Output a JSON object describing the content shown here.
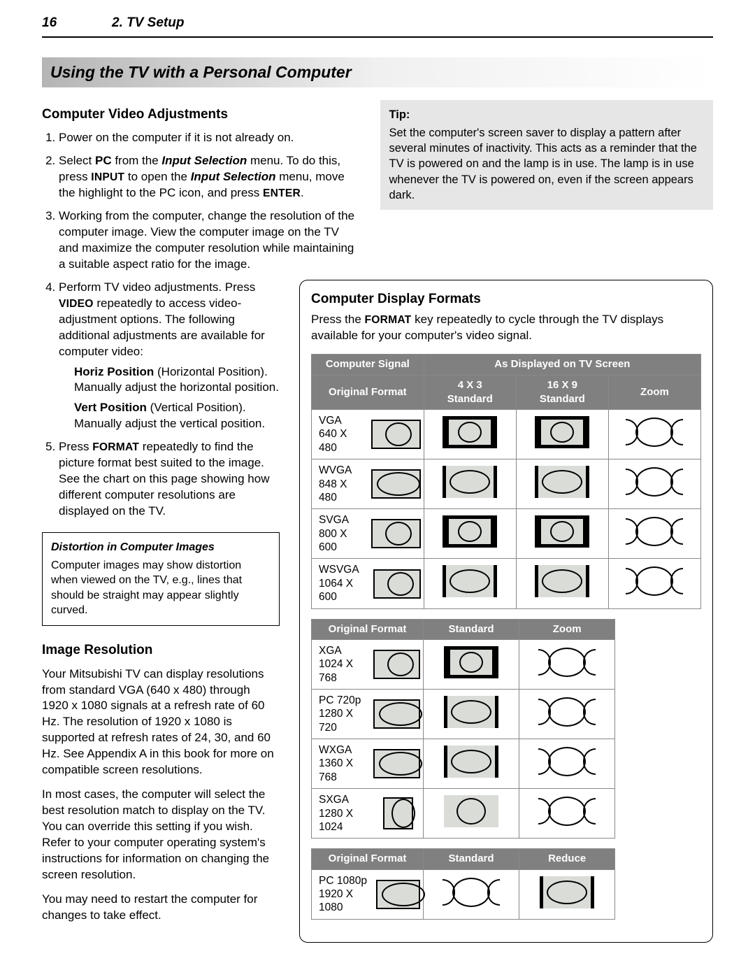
{
  "page_number": "16",
  "chapter": "2.  TV Setup",
  "banner": "Using the TV with a Personal Computer",
  "left": {
    "heading1": "Computer Video Adjustments",
    "steps": [
      "Power on the computer if it is not already on.",
      "Select <b>PC</b> from the <b><i>Input Selection</i></b> menu.  To do this, press <span class='small-caps'>INPUT</span> to open the <b><i>Input Selection</i></b> menu, move the highlight to the PC icon, and press <span class='small-caps'>ENTER</span>.",
      "Working from the computer, change the resolution of the computer image.  View the computer image on the TV and maximize the computer resolution while maintaining a suitable aspect ratio for the image.",
      "Perform TV video adjustments.  Press <span class='small-caps'>VIDEO</span> repeatedly to access video-adjustment options.  The following additional adjustments are available for computer video:",
      "Press <span class='small-caps'>FORMAT</span> repeatedly to find the picture format best suited to the image.  See the chart on this page showing how different computer resolutions are displayed on the TV."
    ],
    "step4_sub": [
      "<b>Horiz Position</b> (Horizontal Position). Manually adjust the horizontal position.",
      "<b>Vert Position</b> (Vertical Position). Manually adjust the vertical position."
    ],
    "distortion_head": "Distortion in Computer Images",
    "distortion_body": "Computer images may show distortion when viewed on the TV, e.g., lines that should be straight may appear slightly curved.",
    "heading2": "Image Resolution",
    "res_p1": "Your Mitsubishi TV can display resolutions from standard VGA (640 x 480) through 1920 x 1080 signals at a refresh rate of 60 Hz.  The resolution of 1920 x 1080 is supported at refresh rates of  24, 30, and 60 Hz.  See Appendix A in this book for more on compatible screen resolutions.",
    "res_p2": "In most cases, the computer will select the best resolution match to display on the TV. You can override this setting if you wish. Refer to your computer operating system's instructions for information on changing the screen resolution.",
    "res_p3": "You may need to restart the computer for changes to take effect."
  },
  "tip": {
    "head": "Tip:",
    "body": "Set the computer's screen saver to display a pattern after several minutes of inactivity.  This acts as a reminder that the TV is powered on and the lamp is in use.  The lamp is in use whenever the TV is powered on, even if the screen appears dark."
  },
  "formats": {
    "heading": "Computer Display Formats",
    "lead": "Press the <span class='small-caps'>FORMAT</span> key repeatedly to cycle through the TV displays available for your computer's video signal.",
    "table1": {
      "header_top": [
        "Computer Signal",
        "As Displayed on TV Screen"
      ],
      "header_sub": [
        "Original Format",
        "4 X 3 Standard",
        "16 X 9 Standard",
        "Zoom"
      ],
      "rows": [
        {
          "name": "VGA",
          "res": "640 X 480",
          "cells": [
            "plain",
            "letterbox",
            "letterbox",
            "zoom"
          ]
        },
        {
          "name": "WVGA",
          "res": "848 X 480",
          "cells": [
            "wide",
            "pillarwide",
            "pillarwide",
            "zoom"
          ]
        },
        {
          "name": "SVGA",
          "res": "800 X 600",
          "cells": [
            "plain",
            "letterbox",
            "letterbox",
            "zoom"
          ]
        },
        {
          "name": "WSVGA",
          "res": "1064 X 600",
          "cells": [
            "plain",
            "pillarwide",
            "pillarwide",
            "zoom"
          ]
        }
      ]
    },
    "table2": {
      "header": [
        "Original Format",
        "Standard",
        "Zoom"
      ],
      "rows": [
        {
          "name": "XGA",
          "res": "1024 X 768",
          "cells": [
            "plain",
            "letterbox",
            "zoom"
          ]
        },
        {
          "name": "PC 720p",
          "res": "1280 X 720",
          "cells": [
            "wide",
            "pillarwide",
            "zoom"
          ]
        },
        {
          "name": "WXGA",
          "res": "1360 X 768",
          "cells": [
            "wide",
            "pillarwide",
            "zoom"
          ]
        },
        {
          "name": "SXGA",
          "res": "1280 X 1024",
          "cells": [
            "tall",
            "fill",
            "zoom"
          ]
        }
      ]
    },
    "table3": {
      "header": [
        "Original Format",
        "Standard",
        "Reduce"
      ],
      "rows": [
        {
          "name": "PC 1080p",
          "res": "1920 X 1080",
          "cells": [
            "wide",
            "zoom",
            "pillarwide"
          ]
        }
      ]
    }
  },
  "colors": {
    "header_bg": "#808080",
    "header_fg": "#ffffff",
    "glyph_bg": "#d9dcd7",
    "tip_bg": "#e6e6e6",
    "banner_grad_from": "#b5b5b5"
  }
}
